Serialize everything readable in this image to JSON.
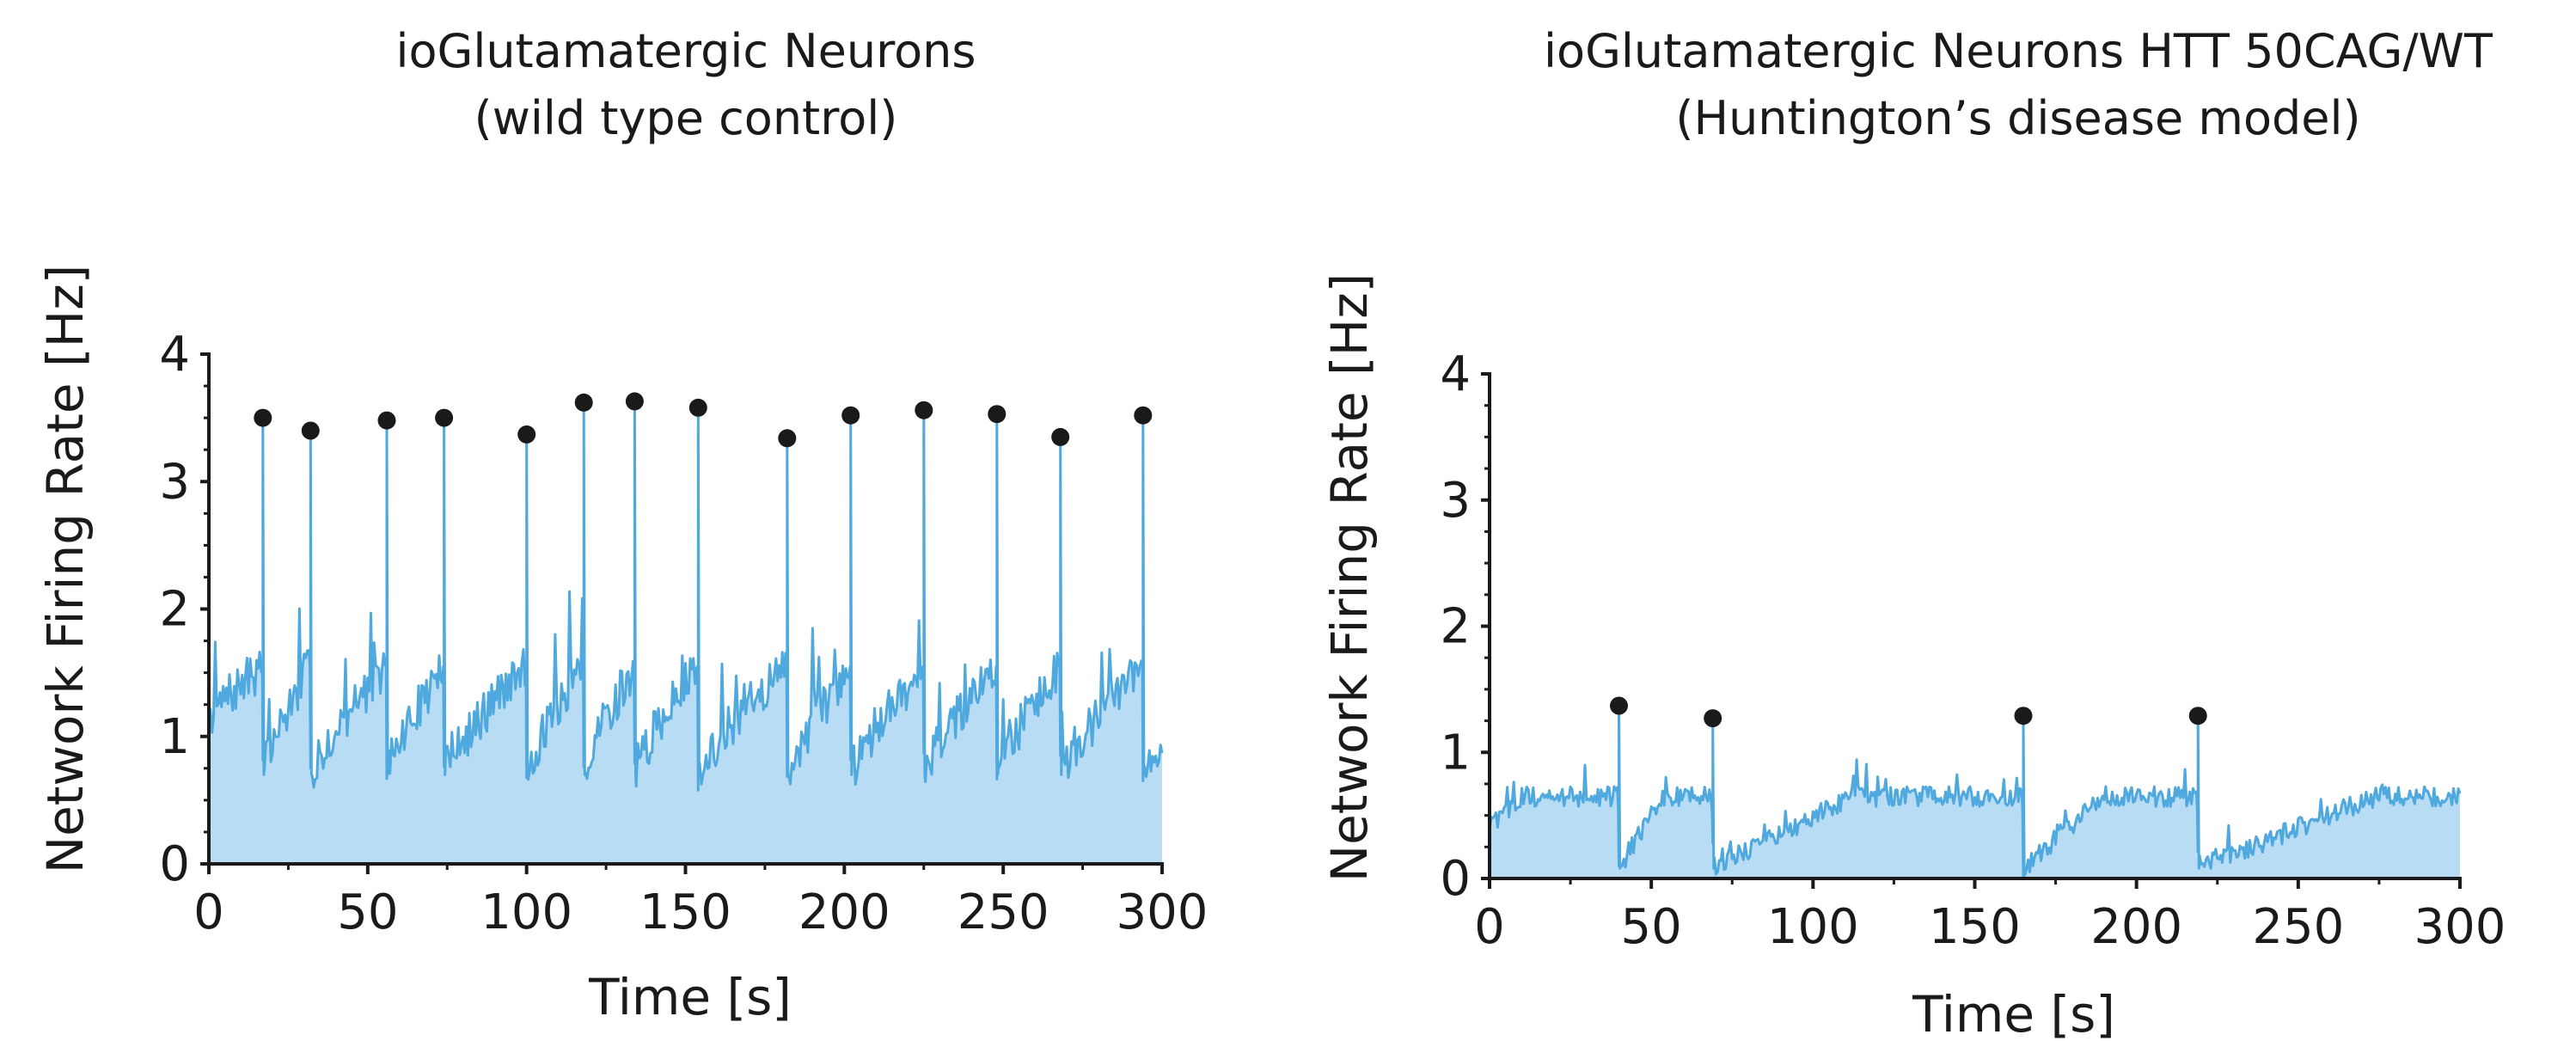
{
  "colors": {
    "area_fill": "#b7dcf4",
    "trace": "#4fa8de",
    "peak_marker": "#1a1a1a",
    "axis": "#1a1a1a"
  },
  "chart_data": [
    {
      "type": "area",
      "title": "ioGlutamatergic Neurons",
      "subtitle": "(wild type control)",
      "xlabel": "Time [s]",
      "ylabel": "Network Firing Rate [Hz]",
      "xlim": [
        0,
        300
      ],
      "ylim": [
        0,
        4
      ],
      "xticks": [
        0,
        50,
        100,
        150,
        200,
        250,
        300
      ],
      "yticks": [
        0,
        1,
        2,
        3,
        4
      ],
      "grid": false,
      "baseline": 0.85,
      "pre_peak_ramp": 1.55,
      "post_peak_drop": 0.7,
      "peaks": [
        {
          "t": 17,
          "peak": 3.5
        },
        {
          "t": 32,
          "peak": 3.4
        },
        {
          "t": 56,
          "peak": 3.48
        },
        {
          "t": 74,
          "peak": 3.5
        },
        {
          "t": 100,
          "peak": 3.37
        },
        {
          "t": 118,
          "peak": 3.62
        },
        {
          "t": 134,
          "peak": 3.63
        },
        {
          "t": 154,
          "peak": 3.58
        },
        {
          "t": 182,
          "peak": 3.34
        },
        {
          "t": 202,
          "peak": 3.52
        },
        {
          "t": 225,
          "peak": 3.56
        },
        {
          "t": 248,
          "peak": 3.53
        },
        {
          "t": 268,
          "peak": 3.35
        },
        {
          "t": 294,
          "peak": 3.52
        }
      ]
    },
    {
      "type": "area",
      "title": "ioGlutamatergic Neurons HTT 50CAG/WT",
      "subtitle": "(Huntington’s disease model)",
      "xlabel": "Time [s]",
      "ylabel": "Network Firing Rate [Hz]",
      "xlim": [
        0,
        300
      ],
      "ylim": [
        0,
        4
      ],
      "xticks": [
        0,
        50,
        100,
        150,
        200,
        250,
        300
      ],
      "yticks": [
        0,
        1,
        2,
        3,
        4
      ],
      "grid": false,
      "baseline": 0.65,
      "pre_peak_ramp": 0.6,
      "post_peak_drop": 0.08,
      "peaks": [
        {
          "t": 40,
          "peak": 1.37
        },
        {
          "t": 69,
          "peak": 1.27
        },
        {
          "t": 165,
          "peak": 1.29
        },
        {
          "t": 219,
          "peak": 1.29
        }
      ]
    }
  ]
}
